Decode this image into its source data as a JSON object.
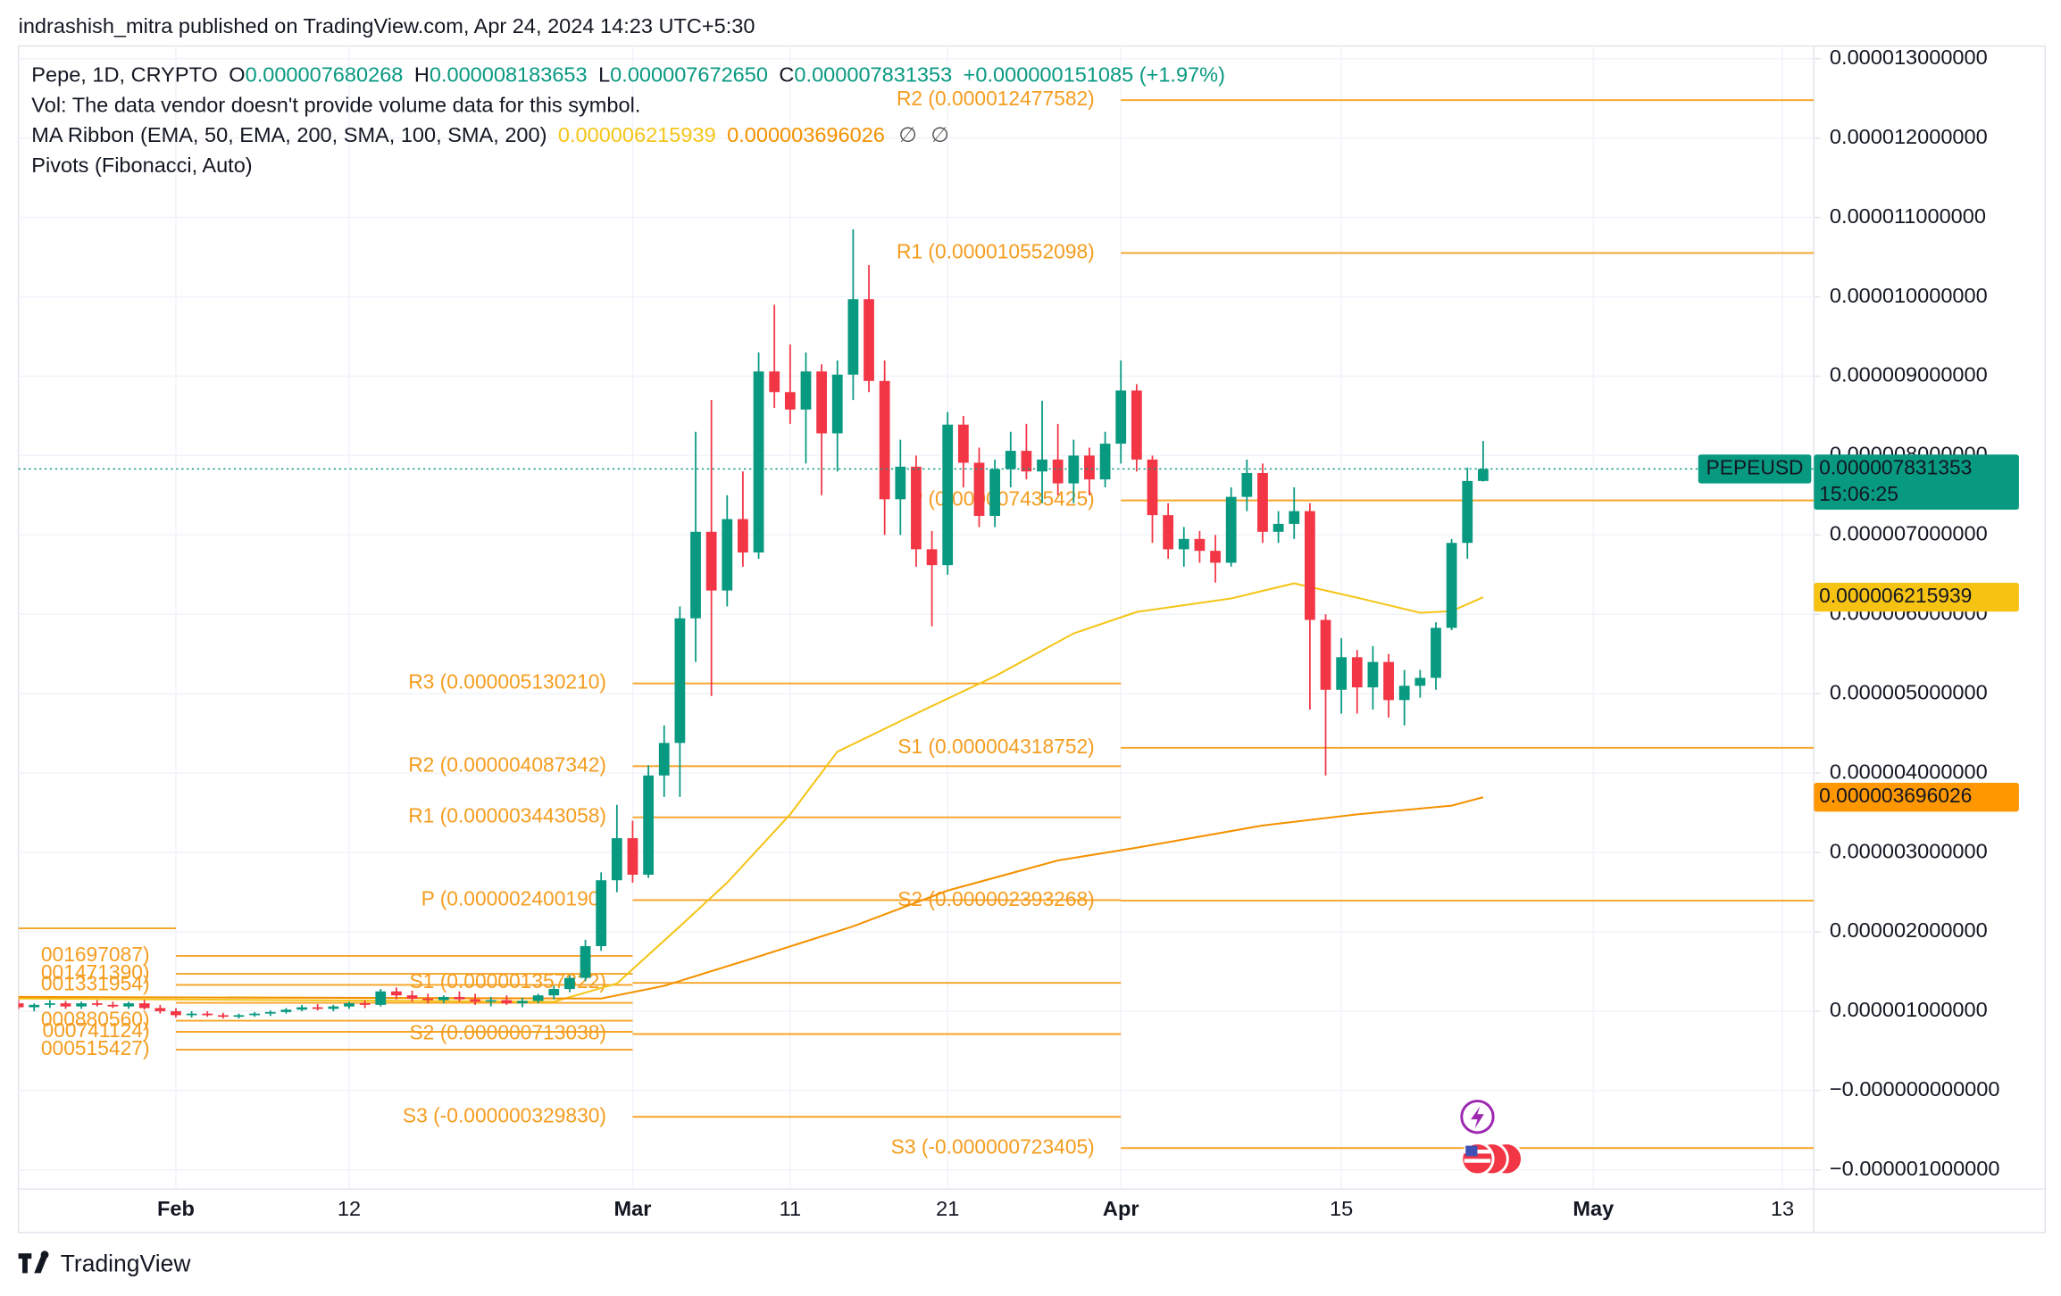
{
  "chart_data": {
    "type": "candlestick",
    "header": "indrashish_mitra published on TradingView.com, Apr 24, 2024 14:23 UTC+5:30",
    "brand": "TradingView",
    "legend": {
      "symbol": "Pepe, 1D, CRYPTO",
      "ohlc": [
        {
          "key": "O",
          "value": "0.000007680268"
        },
        {
          "key": "H",
          "value": "0.000008183653"
        },
        {
          "key": "L",
          "value": "0.000007672650"
        },
        {
          "key": "C",
          "value": "0.000007831353"
        }
      ],
      "change": "+0.000000151085 (+1.97%)",
      "volume_note": "Vol: The data vendor doesn't provide volume data for this symbol.",
      "ma_ribbon": "MA Ribbon (EMA, 50, EMA, 200, SMA, 100, SMA, 200)",
      "ma_empty": [
        "∅",
        "∅"
      ],
      "pivots": "Pivots (Fibonacci, Auto)"
    },
    "price_badge": {
      "symbol": "PEPEUSD",
      "price": "0.000007831353",
      "countdown": "15:06:25"
    },
    "up_color": "#089981",
    "down_color": "#f23645",
    "xlim": [
      "2024-01-22",
      "2024-05-15"
    ],
    "xticks": [
      {
        "value": "2024-02-01",
        "label": "Feb"
      },
      {
        "value": "2024-02-12",
        "label": "12"
      },
      {
        "value": "2024-03-01",
        "label": "Mar"
      },
      {
        "value": "2024-03-11",
        "label": "11"
      },
      {
        "value": "2024-03-21",
        "label": "21"
      },
      {
        "value": "2024-04-01",
        "label": "Apr"
      },
      {
        "value": "2024-04-15",
        "label": "15"
      },
      {
        "value": "2024-05-01",
        "label": "May"
      },
      {
        "value": "2024-05-13",
        "label": "13"
      }
    ],
    "ylim": [
      -1.24e-06,
      1.316e-05
    ],
    "yticks": [
      {
        "value": 1.3e-05,
        "label": "0.000013000000"
      },
      {
        "value": 1.2e-05,
        "label": "0.000012000000"
      },
      {
        "value": 1.1e-05,
        "label": "0.000011000000"
      },
      {
        "value": 1e-05,
        "label": "0.000010000000"
      },
      {
        "value": 9e-06,
        "label": "0.000009000000"
      },
      {
        "value": 8e-06,
        "label": "0.000008000000"
      },
      {
        "value": 7e-06,
        "label": "0.000007000000"
      },
      {
        "value": 6e-06,
        "label": "0.000006000000"
      },
      {
        "value": 5e-06,
        "label": "0.000005000000"
      },
      {
        "value": 4e-06,
        "label": "0.000004000000"
      },
      {
        "value": 3e-06,
        "label": "0.000003000000"
      },
      {
        "value": 2e-06,
        "label": "0.000002000000"
      },
      {
        "value": 1e-06,
        "label": "0.000001000000"
      },
      {
        "value": 0,
        "label": "−0.000000000000"
      },
      {
        "value": -1e-06,
        "label": "−0.000001000000"
      }
    ],
    "grid": true,
    "x": [
      "2024-01-22",
      "2024-01-23",
      "2024-01-24",
      "2024-01-25",
      "2024-01-26",
      "2024-01-27",
      "2024-01-28",
      "2024-01-29",
      "2024-01-30",
      "2024-01-31",
      "2024-02-01",
      "2024-02-02",
      "2024-02-03",
      "2024-02-04",
      "2024-02-05",
      "2024-02-06",
      "2024-02-07",
      "2024-02-08",
      "2024-02-09",
      "2024-02-10",
      "2024-02-11",
      "2024-02-12",
      "2024-02-13",
      "2024-02-14",
      "2024-02-15",
      "2024-02-16",
      "2024-02-17",
      "2024-02-18",
      "2024-02-19",
      "2024-02-20",
      "2024-02-21",
      "2024-02-22",
      "2024-02-23",
      "2024-02-24",
      "2024-02-25",
      "2024-02-26",
      "2024-02-27",
      "2024-02-28",
      "2024-02-29",
      "2024-03-01",
      "2024-03-02",
      "2024-03-03",
      "2024-03-04",
      "2024-03-05",
      "2024-03-06",
      "2024-03-07",
      "2024-03-08",
      "2024-03-09",
      "2024-03-10",
      "2024-03-11",
      "2024-03-12",
      "2024-03-13",
      "2024-03-14",
      "2024-03-15",
      "2024-03-16",
      "2024-03-17",
      "2024-03-18",
      "2024-03-19",
      "2024-03-20",
      "2024-03-21",
      "2024-03-22",
      "2024-03-23",
      "2024-03-24",
      "2024-03-25",
      "2024-03-26",
      "2024-03-27",
      "2024-03-28",
      "2024-03-29",
      "2024-03-30",
      "2024-03-31",
      "2024-04-01",
      "2024-04-02",
      "2024-04-03",
      "2024-04-04",
      "2024-04-05",
      "2024-04-06",
      "2024-04-07",
      "2024-04-08",
      "2024-04-09",
      "2024-04-10",
      "2024-04-11",
      "2024-04-12",
      "2024-04-13",
      "2024-04-14",
      "2024-04-15",
      "2024-04-16",
      "2024-04-17",
      "2024-04-18",
      "2024-04-19",
      "2024-04-20",
      "2024-04-21",
      "2024-04-22",
      "2024-04-23",
      "2024-04-24"
    ],
    "open": [
      1.1e-06,
      1.05e-06,
      1.08e-06,
      1.1e-06,
      1.06e-06,
      1.1e-06,
      1.08e-06,
      1.06e-06,
      1.1e-06,
      1.04e-06,
      1e-06,
      9.5e-07,
      9.7e-07,
      9.5e-07,
      9.3e-07,
      9.5e-07,
      9.7e-07,
      9.9e-07,
      1.02e-06,
      1.05e-06,
      1.03e-06,
      1.06e-06,
      1.1e-06,
      1.08e-06,
      1.25e-06,
      1.2e-06,
      1.16e-06,
      1.14e-06,
      1.18e-06,
      1.15e-06,
      1.12e-06,
      1.14e-06,
      1.1e-06,
      1.13e-06,
      1.2e-06,
      1.28e-06,
      1.42e-06,
      1.82e-06,
      2.65e-06,
      3.18e-06,
      2.72e-06,
      3.97e-06,
      4.38e-06,
      5.95e-06,
      7.04e-06,
      6.3e-06,
      7.2e-06,
      6.78e-06,
      9.06e-06,
      8.8e-06,
      8.58e-06,
      9.06e-06,
      8.28e-06,
      9.02e-06,
      9.97e-06,
      8.94e-06,
      7.45e-06,
      7.86e-06,
      6.82e-06,
      6.62e-06,
      8.39e-06,
      7.91e-06,
      7.24e-06,
      7.83e-06,
      8.06e-06,
      7.8e-06,
      7.95e-06,
      7.65e-06,
      8e-06,
      7.7e-06,
      8.15e-06,
      8.82e-06,
      7.95e-06,
      7.25e-06,
      6.82e-06,
      6.95e-06,
      6.8e-06,
      6.65e-06,
      7.48e-06,
      7.78e-06,
      7.04e-06,
      7.14e-06,
      7.3e-06,
      5.93e-06,
      5.05e-06,
      5.46e-06,
      5.08e-06,
      5.4e-06,
      4.92e-06,
      5.1e-06,
      5.2e-06,
      5.83e-06,
      6.9e-06,
      7.680268e-06
    ],
    "high": [
      1.15e-06,
      1.1e-06,
      1.14e-06,
      1.13e-06,
      1.12e-06,
      1.14e-06,
      1.12e-06,
      1.12e-06,
      1.14e-06,
      1.08e-06,
      1.04e-06,
      1e-06,
      1e-06,
      9.8e-07,
      9.7e-07,
      9.9e-07,
      1.01e-06,
      1.04e-06,
      1.08e-06,
      1.09e-06,
      1.08e-06,
      1.12e-06,
      1.14e-06,
      1.28e-06,
      1.3e-06,
      1.26e-06,
      1.22e-06,
      1.2e-06,
      1.25e-06,
      1.22e-06,
      1.18e-06,
      1.2e-06,
      1.17e-06,
      1.22e-06,
      1.32e-06,
      1.45e-06,
      1.9e-06,
      2.75e-06,
      3.6e-06,
      3.4e-06,
      4.1e-06,
      4.6e-06,
      6.1e-06,
      8.3e-06,
      8.7e-06,
      7.5e-06,
      7.8e-06,
      9.3e-06,
      9.9e-06,
      9.4e-06,
      9.3e-06,
      9.15e-06,
      9.2e-06,
      1.085e-05,
      1.04e-05,
      9.2e-06,
      8.2e-06,
      8e-06,
      7.05e-06,
      8.55e-06,
      8.5e-06,
      8.1e-06,
      7.95e-06,
      8.3e-06,
      8.4e-06,
      8.69e-06,
      8.4e-06,
      8.2e-06,
      8.1e-06,
      8.3e-06,
      9.2e-06,
      8.9e-06,
      8e-06,
      7.4e-06,
      7.1e-06,
      7.05e-06,
      7e-06,
      7.6e-06,
      7.95e-06,
      7.9e-06,
      7.3e-06,
      7.6e-06,
      7.4e-06,
      6e-06,
      5.7e-06,
      5.55e-06,
      5.6e-06,
      5.5e-06,
      5.3e-06,
      5.3e-06,
      5.9e-06,
      6.95e-06,
      7.85e-06,
      8.183653e-06
    ],
    "low": [
      1.02e-06,
      1e-06,
      1.04e-06,
      1.03e-06,
      1.03e-06,
      1.06e-06,
      1.04e-06,
      1.03e-06,
      1.02e-06,
      9.7e-07,
      9.2e-07,
      9.2e-07,
      9.3e-07,
      9.1e-07,
      9.1e-07,
      9.3e-07,
      9.4e-07,
      9.7e-07,
      1e-06,
      1.01e-06,
      1e-06,
      1.03e-06,
      1.04e-06,
      1.06e-06,
      1.15e-06,
      1.12e-06,
      1.1e-06,
      1.1e-06,
      1.12e-06,
      1.08e-06,
      1.06e-06,
      1.08e-06,
      1.05e-06,
      1.1e-06,
      1.15e-06,
      1.24e-06,
      1.38e-06,
      1.76e-06,
      2.5e-06,
      2.62e-06,
      2.68e-06,
      3.7e-06,
      3.7e-06,
      5.4e-06,
      4.97e-06,
      6.1e-06,
      6.6e-06,
      6.7e-06,
      8.6e-06,
      8.4e-06,
      7.9e-06,
      7.5e-06,
      7.8e-06,
      8.7e-06,
      8.8e-06,
      7e-06,
      7e-06,
      6.6e-06,
      5.85e-06,
      6.5e-06,
      7.6e-06,
      7.1e-06,
      7.1e-06,
      7.6e-06,
      7.7e-06,
      7.4e-06,
      7.5e-06,
      7.4e-06,
      7.5e-06,
      7.6e-06,
      7.9e-06,
      7.8e-06,
      6.9e-06,
      6.7e-06,
      6.6e-06,
      6.65e-06,
      6.4e-06,
      6.6e-06,
      7.3e-06,
      6.9e-06,
      6.9e-06,
      6.95e-06,
      4.8e-06,
      3.97e-06,
      4.75e-06,
      4.75e-06,
      4.8e-06,
      4.7e-06,
      4.6e-06,
      4.95e-06,
      5.05e-06,
      5.8e-06,
      6.7e-06,
      7.67265e-06
    ],
    "close": [
      1.05e-06,
      1.08e-06,
      1.1e-06,
      1.06e-06,
      1.1e-06,
      1.08e-06,
      1.06e-06,
      1.1e-06,
      1.04e-06,
      1e-06,
      9.5e-07,
      9.7e-07,
      9.5e-07,
      9.3e-07,
      9.5e-07,
      9.7e-07,
      9.9e-07,
      1.02e-06,
      1.05e-06,
      1.03e-06,
      1.06e-06,
      1.1e-06,
      1.08e-06,
      1.25e-06,
      1.2e-06,
      1.16e-06,
      1.14e-06,
      1.18e-06,
      1.15e-06,
      1.12e-06,
      1.14e-06,
      1.1e-06,
      1.13e-06,
      1.2e-06,
      1.28e-06,
      1.42e-06,
      1.82e-06,
      2.65e-06,
      3.18e-06,
      2.72e-06,
      3.97e-06,
      4.38e-06,
      5.95e-06,
      7.04e-06,
      6.3e-06,
      7.2e-06,
      6.78e-06,
      9.06e-06,
      8.8e-06,
      8.58e-06,
      9.06e-06,
      8.28e-06,
      9.02e-06,
      9.97e-06,
      8.94e-06,
      7.45e-06,
      7.86e-06,
      6.82e-06,
      6.62e-06,
      8.39e-06,
      7.91e-06,
      7.24e-06,
      7.83e-06,
      8.06e-06,
      7.8e-06,
      7.95e-06,
      7.65e-06,
      8e-06,
      7.7e-06,
      8.15e-06,
      8.82e-06,
      7.95e-06,
      7.25e-06,
      6.82e-06,
      6.95e-06,
      6.8e-06,
      6.65e-06,
      7.48e-06,
      7.78e-06,
      7.04e-06,
      7.14e-06,
      7.3e-06,
      5.93e-06,
      5.05e-06,
      5.46e-06,
      5.08e-06,
      5.4e-06,
      4.92e-06,
      5.1e-06,
      5.2e-06,
      5.83e-06,
      6.9e-06,
      7.68e-06,
      7.831353e-06
    ],
    "ma_lines": [
      {
        "color": "#f5c518",
        "badge_color": "#f7c313",
        "last_label": "0.000006215939",
        "x": [
          "2024-01-22",
          "2024-02-25",
          "2024-02-29",
          "2024-03-04",
          "2024-03-07",
          "2024-03-11",
          "2024-03-14",
          "2024-03-19",
          "2024-03-24",
          "2024-03-29",
          "2024-04-02",
          "2024-04-08",
          "2024-04-12",
          "2024-04-16",
          "2024-04-20",
          "2024-04-22",
          "2024-04-24"
        ],
        "values": [
          1.16e-06,
          1.12e-06,
          1.35e-06,
          2.07e-06,
          2.62e-06,
          3.48e-06,
          4.27e-06,
          4.75e-06,
          5.22e-06,
          5.76e-06,
          6.03e-06,
          6.2e-06,
          6.39e-06,
          6.21e-06,
          6.02e-06,
          6.04e-06,
          6.215939e-06
        ]
      },
      {
        "color": "#f59100",
        "badge_color": "#ff9800",
        "last_label": "0.000003696026",
        "x": [
          "2024-01-22",
          "2024-02-28",
          "2024-03-03",
          "2024-03-09",
          "2024-03-15",
          "2024-03-21",
          "2024-03-28",
          "2024-04-02",
          "2024-04-10",
          "2024-04-16",
          "2024-04-22",
          "2024-04-24"
        ],
        "values": [
          1.18e-06,
          1.16e-06,
          1.32e-06,
          1.69e-06,
          2.07e-06,
          2.52e-06,
          2.9e-06,
          3.06e-06,
          3.34e-06,
          3.48e-06,
          3.59e-06,
          3.696026e-06
        ]
      }
    ],
    "pivot_color": "#f7a325",
    "pivots": [
      {
        "start": "2024-01-01",
        "end": "2024-02-01",
        "levels": [
          {
            "value": 2.045e-06
          }
        ]
      },
      {
        "start": "2024-02-01",
        "end": "2024-03-01",
        "levels": [
          {
            "value": 1.697087e-06,
            "label": "001697087)"
          },
          {
            "value": 1.47139e-06,
            "label": "001471390)"
          },
          {
            "value": 1.331954e-06,
            "label": "001331954)"
          },
          {
            "value": 1.106e-06
          },
          {
            "value": 8.8056e-07,
            "label": "000880560)"
          },
          {
            "value": 7.41124e-07,
            "label": "000741124)"
          },
          {
            "value": 5.15427e-07,
            "label": "000515427)"
          }
        ]
      },
      {
        "start": "2024-03-01",
        "end": "2024-04-01",
        "levels": [
          {
            "value": 5.13021e-06,
            "label": "R3 (0.000005130210)"
          },
          {
            "value": 4.087342e-06,
            "label": "R2 (0.000004087342)"
          },
          {
            "value": 3.443058e-06,
            "label": "R1 (0.000003443058)"
          },
          {
            "value": 2.40019e-06,
            "label": "P (0.000002400190)"
          },
          {
            "value": 1.357322e-06,
            "label": "S1 (0.000001357322)"
          },
          {
            "value": 7.13038e-07,
            "label": "S2 (0.000000713038)"
          },
          {
            "value": -3.2983e-07,
            "label": "S3 (-0.000000329830)"
          }
        ]
      },
      {
        "start": "2024-04-01",
        "end": "2024-05-15",
        "levels": [
          {
            "value": 1.2477582e-05,
            "label": "R2 (0.000012477582)"
          },
          {
            "value": 1.0552098e-05,
            "label": "R1 (0.000010552098)"
          },
          {
            "value": 7.435425e-06,
            "label": "P (0.000007435425)"
          },
          {
            "value": 4.318752e-06,
            "label": "S1 (0.000004318752)"
          },
          {
            "value": 2.393268e-06,
            "label": "S2 (0.000002393268)"
          },
          {
            "value": -7.23405e-07,
            "label": "S3 (-0.000000723405)"
          }
        ]
      }
    ]
  }
}
